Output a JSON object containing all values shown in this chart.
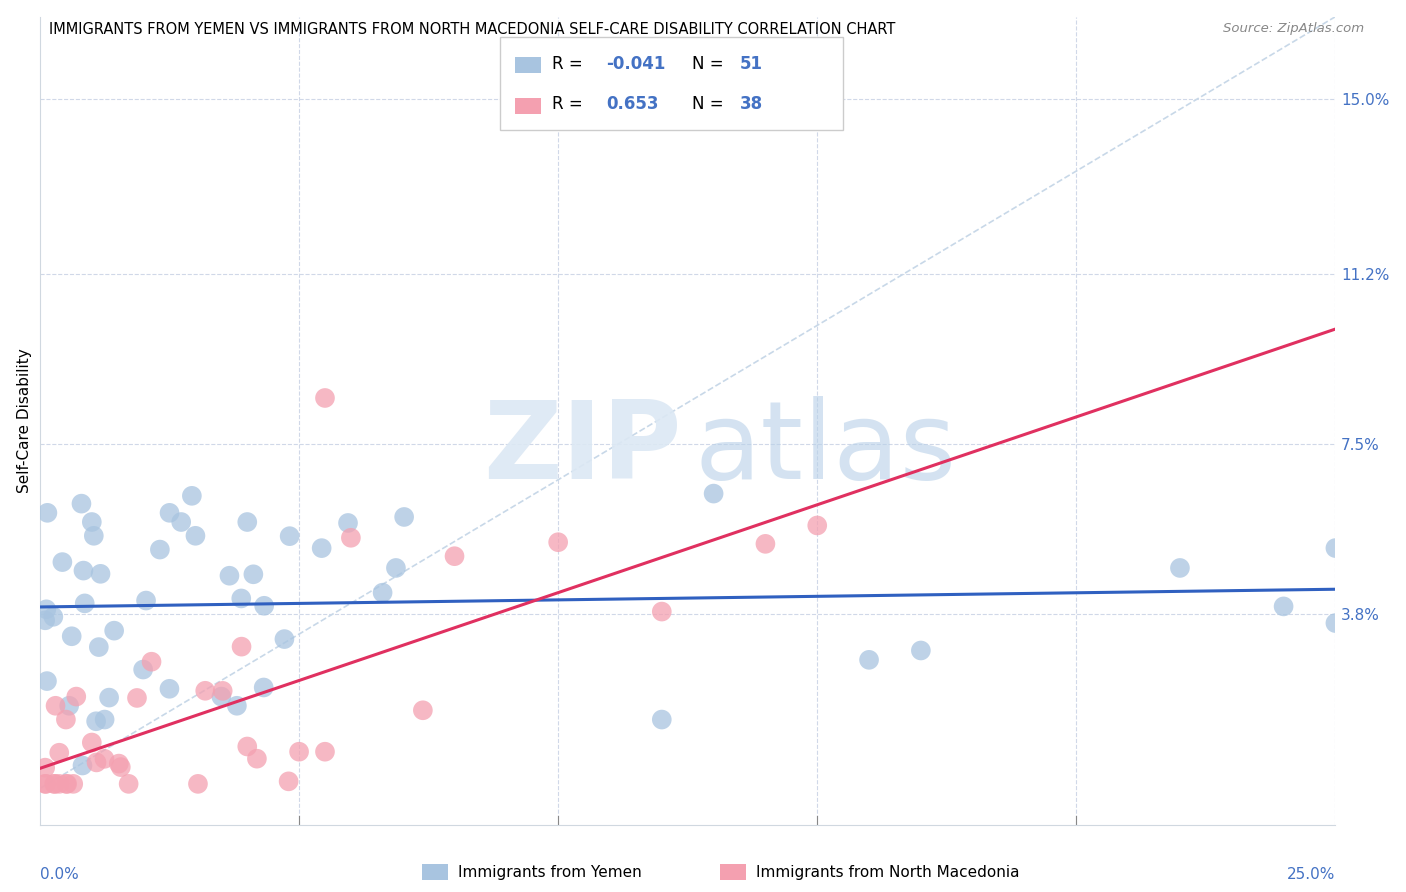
{
  "title": "IMMIGRANTS FROM YEMEN VS IMMIGRANTS FROM NORTH MACEDONIA SELF-CARE DISABILITY CORRELATION CHART",
  "source": "Source: ZipAtlas.com",
  "ylabel": "Self-Care Disability",
  "ytick_labels": [
    "3.8%",
    "7.5%",
    "11.2%",
    "15.0%"
  ],
  "ytick_values": [
    0.038,
    0.075,
    0.112,
    0.15
  ],
  "xlim": [
    0.0,
    0.25
  ],
  "ylim": [
    -0.008,
    0.168
  ],
  "color_yemen": "#a8c4e0",
  "color_macedonia": "#f4a0b0",
  "line_color_yemen": "#3060c0",
  "line_color_macedonia": "#e03060",
  "diag_line_color": "#c8d8e8",
  "r_color": "#4472c4",
  "n_color": "#4472c4",
  "grid_color": "#d0d8e8",
  "watermark_zip_color": "#dce8f4",
  "watermark_atlas_color": "#b8d0e8"
}
